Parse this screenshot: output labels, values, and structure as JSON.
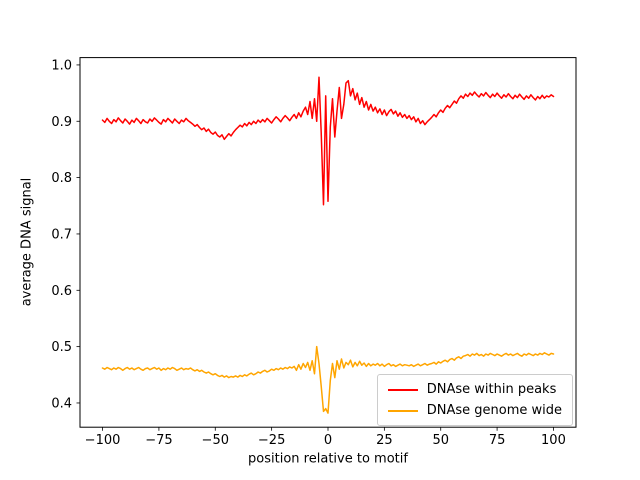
{
  "figure": {
    "background": "#ffffff"
  },
  "chart_data": {
    "type": "line",
    "title": "",
    "xlabel": "position relative to motif",
    "ylabel": "average DNA signal",
    "grid": false,
    "legend_position": "lower right",
    "xlim": [
      -110,
      110
    ],
    "ylim": [
      0.357,
      1.013
    ],
    "xticks": {
      "values": [
        -100,
        -75,
        -50,
        -25,
        0,
        25,
        50,
        75,
        100
      ],
      "labels": [
        "−100",
        "−75",
        "−50",
        "−25",
        "0",
        "25",
        "50",
        "75",
        "100"
      ]
    },
    "yticks": {
      "values": [
        0.4,
        0.5,
        0.6,
        0.7,
        0.8,
        0.9,
        1.0
      ],
      "labels": [
        "0.4",
        "0.5",
        "0.6",
        "0.7",
        "0.8",
        "0.9",
        "1.0"
      ]
    },
    "x": {
      "start": -100,
      "step": 1,
      "count": 201
    },
    "series": [
      {
        "name": "DNAse within peaks",
        "color": "#ff0000",
        "values": [
          0.902,
          0.898,
          0.905,
          0.9,
          0.896,
          0.903,
          0.899,
          0.906,
          0.901,
          0.897,
          0.904,
          0.9,
          0.895,
          0.902,
          0.898,
          0.905,
          0.901,
          0.896,
          0.903,
          0.899,
          0.897,
          0.904,
          0.9,
          0.906,
          0.902,
          0.898,
          0.895,
          0.903,
          0.899,
          0.905,
          0.901,
          0.897,
          0.904,
          0.9,
          0.896,
          0.902,
          0.899,
          0.905,
          0.901,
          0.898,
          0.895,
          0.891,
          0.894,
          0.889,
          0.885,
          0.888,
          0.882,
          0.886,
          0.88,
          0.877,
          0.881,
          0.875,
          0.872,
          0.876,
          0.868,
          0.873,
          0.878,
          0.874,
          0.88,
          0.885,
          0.889,
          0.893,
          0.89,
          0.896,
          0.892,
          0.898,
          0.894,
          0.9,
          0.896,
          0.902,
          0.898,
          0.903,
          0.899,
          0.905,
          0.901,
          0.897,
          0.903,
          0.908,
          0.904,
          0.899,
          0.905,
          0.91,
          0.906,
          0.901,
          0.907,
          0.912,
          0.905,
          0.915,
          0.908,
          0.918,
          0.925,
          0.912,
          0.935,
          0.905,
          0.94,
          0.9,
          0.978,
          0.88,
          0.752,
          0.945,
          0.758,
          0.89,
          0.94,
          0.872,
          0.918,
          0.96,
          0.905,
          0.93,
          0.968,
          0.972,
          0.945,
          0.958,
          0.938,
          0.95,
          0.93,
          0.942,
          0.925,
          0.935,
          0.92,
          0.93,
          0.918,
          0.925,
          0.915,
          0.922,
          0.912,
          0.92,
          0.91,
          0.917,
          0.921,
          0.913,
          0.918,
          0.909,
          0.915,
          0.907,
          0.912,
          0.905,
          0.91,
          0.903,
          0.908,
          0.899,
          0.905,
          0.896,
          0.901,
          0.894,
          0.899,
          0.903,
          0.907,
          0.912,
          0.908,
          0.915,
          0.92,
          0.916,
          0.923,
          0.928,
          0.924,
          0.93,
          0.936,
          0.932,
          0.94,
          0.945,
          0.941,
          0.948,
          0.944,
          0.95,
          0.946,
          0.952,
          0.947,
          0.943,
          0.949,
          0.945,
          0.951,
          0.946,
          0.942,
          0.948,
          0.944,
          0.95,
          0.945,
          0.941,
          0.947,
          0.943,
          0.949,
          0.944,
          0.94,
          0.946,
          0.942,
          0.948,
          0.943,
          0.939,
          0.945,
          0.941,
          0.947,
          0.942,
          0.938,
          0.944,
          0.94,
          0.946,
          0.941,
          0.945,
          0.943,
          0.947,
          0.944
        ]
      },
      {
        "name": "DNAse genome wide",
        "color": "#ffa500",
        "values": [
          0.462,
          0.46,
          0.463,
          0.461,
          0.459,
          0.462,
          0.46,
          0.463,
          0.461,
          0.458,
          0.461,
          0.463,
          0.46,
          0.462,
          0.459,
          0.461,
          0.463,
          0.46,
          0.458,
          0.461,
          0.462,
          0.459,
          0.461,
          0.463,
          0.46,
          0.462,
          0.458,
          0.461,
          0.459,
          0.462,
          0.46,
          0.463,
          0.461,
          0.458,
          0.46,
          0.462,
          0.459,
          0.461,
          0.46,
          0.462,
          0.459,
          0.457,
          0.459,
          0.456,
          0.458,
          0.455,
          0.453,
          0.455,
          0.452,
          0.45,
          0.452,
          0.449,
          0.447,
          0.449,
          0.446,
          0.448,
          0.445,
          0.447,
          0.446,
          0.448,
          0.446,
          0.449,
          0.447,
          0.45,
          0.448,
          0.451,
          0.453,
          0.45,
          0.452,
          0.455,
          0.453,
          0.456,
          0.458,
          0.455,
          0.457,
          0.46,
          0.458,
          0.461,
          0.459,
          0.462,
          0.46,
          0.463,
          0.461,
          0.464,
          0.462,
          0.465,
          0.458,
          0.468,
          0.46,
          0.47,
          0.463,
          0.472,
          0.458,
          0.475,
          0.452,
          0.5,
          0.47,
          0.43,
          0.385,
          0.39,
          0.382,
          0.44,
          0.47,
          0.445,
          0.475,
          0.46,
          0.478,
          0.462,
          0.472,
          0.468,
          0.476,
          0.464,
          0.472,
          0.466,
          0.474,
          0.467,
          0.471,
          0.465,
          0.47,
          0.466,
          0.469,
          0.467,
          0.47,
          0.466,
          0.469,
          0.465,
          0.468,
          0.47,
          0.466,
          0.468,
          0.465,
          0.467,
          0.469,
          0.466,
          0.468,
          0.467,
          0.466,
          0.468,
          0.465,
          0.467,
          0.469,
          0.466,
          0.468,
          0.47,
          0.467,
          0.469,
          0.47,
          0.472,
          0.469,
          0.473,
          0.471,
          0.474,
          0.476,
          0.473,
          0.477,
          0.479,
          0.476,
          0.48,
          0.482,
          0.479,
          0.483,
          0.484,
          0.486,
          0.483,
          0.487,
          0.485,
          0.488,
          0.484,
          0.486,
          0.483,
          0.487,
          0.485,
          0.488,
          0.486,
          0.484,
          0.487,
          0.485,
          0.483,
          0.486,
          0.488,
          0.485,
          0.487,
          0.484,
          0.486,
          0.488,
          0.485,
          0.483,
          0.487,
          0.485,
          0.488,
          0.486,
          0.484,
          0.487,
          0.485,
          0.488,
          0.486,
          0.489,
          0.487,
          0.485,
          0.488,
          0.487
        ]
      }
    ]
  }
}
